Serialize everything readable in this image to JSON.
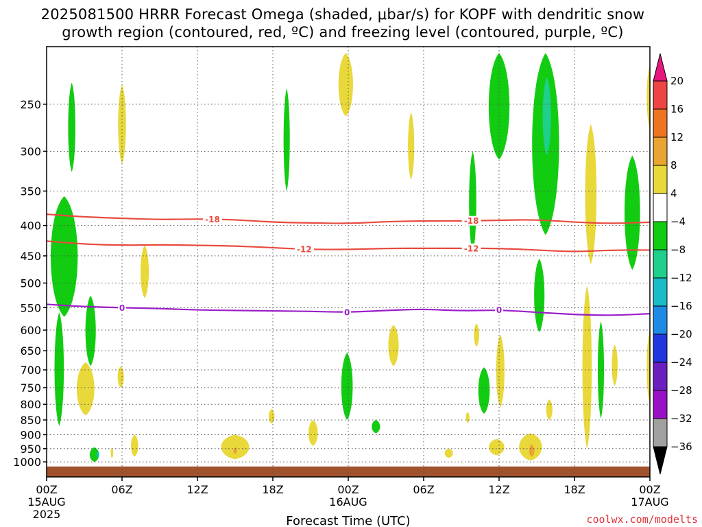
{
  "title": {
    "line1": "2025081500 HRRR Forecast Omega (shaded, μbar/s) for KOPF with dendritic snow",
    "line2": "growth region (contoured, red, ºC) and freezing level (contoured, purple, ºC)"
  },
  "credit": "coolwx.com/modelts",
  "colors": {
    "temp_contour": "#e84a3e",
    "freezing_contour": "#9a1fc8",
    "ground": "#a0522d",
    "grid": "#555555"
  },
  "chart_data": {
    "type": "heatmap",
    "xlabel": "Forecast Time (UTC)",
    "ylabel": "",
    "xlim_hours": [
      0,
      48
    ],
    "y_scale": "log",
    "ylim": [
      1060,
      200
    ],
    "grid": true,
    "x_ticks": [
      {
        "hour": 0,
        "label": "00Z",
        "sub1": "15AUG",
        "sub2": "2025"
      },
      {
        "hour": 6,
        "label": "06Z",
        "sub1": "",
        "sub2": ""
      },
      {
        "hour": 12,
        "label": "12Z",
        "sub1": "",
        "sub2": ""
      },
      {
        "hour": 18,
        "label": "18Z",
        "sub1": "",
        "sub2": ""
      },
      {
        "hour": 24,
        "label": "00Z",
        "sub1": "16AUG",
        "sub2": ""
      },
      {
        "hour": 30,
        "label": "06Z",
        "sub1": "",
        "sub2": ""
      },
      {
        "hour": 36,
        "label": "12Z",
        "sub1": "",
        "sub2": ""
      },
      {
        "hour": 42,
        "label": "18Z",
        "sub1": "",
        "sub2": ""
      },
      {
        "hour": 48,
        "label": "00Z",
        "sub1": "17AUG",
        "sub2": ""
      }
    ],
    "y_ticks": [
      250,
      300,
      350,
      400,
      450,
      500,
      550,
      600,
      650,
      700,
      750,
      800,
      850,
      900,
      950,
      1000
    ],
    "colorbar": {
      "labels": [
        "20",
        "16",
        "12",
        "8",
        "4",
        "−4",
        "−8",
        "−12",
        "−16",
        "−20",
        "−24",
        "−28",
        "−32",
        "−36"
      ],
      "bands_top_to_bottom": [
        "#e8177e",
        "#ef4444",
        "#ee7422",
        "#e9a431",
        "#e8d83a",
        "#ffffff",
        "#11cc11",
        "#1fcf8c",
        "#19bcc6",
        "#1f8ae6",
        "#2036de",
        "#6a1fbe",
        "#9a10c6",
        "#a0a0a0",
        "#000000"
      ]
    },
    "contours": [
      {
        "name": "-18",
        "color": "#e84a3e",
        "labels": [
          "-18",
          "-18"
        ],
        "label_hours": [
          13.2,
          33.8
        ],
        "points": [
          [
            0,
            383
          ],
          [
            3,
            387
          ],
          [
            6,
            389
          ],
          [
            9,
            391
          ],
          [
            12,
            390
          ],
          [
            15,
            391
          ],
          [
            18,
            395
          ],
          [
            21,
            396
          ],
          [
            24,
            397
          ],
          [
            27,
            394
          ],
          [
            30,
            393
          ],
          [
            33,
            393
          ],
          [
            36,
            392
          ],
          [
            39,
            391
          ],
          [
            42,
            395
          ],
          [
            45,
            397
          ],
          [
            48,
            395
          ]
        ]
      },
      {
        "name": "-12",
        "color": "#e84a3e",
        "labels": [
          "-12",
          "-12"
        ],
        "label_hours": [
          20.5,
          33.8
        ],
        "points": [
          [
            0,
            425
          ],
          [
            3,
            430
          ],
          [
            6,
            432
          ],
          [
            9,
            431
          ],
          [
            12,
            432
          ],
          [
            15,
            433
          ],
          [
            18,
            436
          ],
          [
            21,
            439
          ],
          [
            24,
            439
          ],
          [
            27,
            437
          ],
          [
            30,
            437
          ],
          [
            33,
            437
          ],
          [
            36,
            437
          ],
          [
            39,
            440
          ],
          [
            42,
            443
          ],
          [
            45,
            440
          ],
          [
            48,
            440
          ]
        ]
      },
      {
        "name": "0",
        "color": "#9a1fc8",
        "labels": [
          "0",
          "0",
          "0"
        ],
        "label_hours": [
          6.0,
          23.9,
          36.0
        ],
        "points": [
          [
            0,
            543
          ],
          [
            3,
            548
          ],
          [
            6,
            550
          ],
          [
            9,
            552
          ],
          [
            12,
            555
          ],
          [
            15,
            556
          ],
          [
            18,
            557
          ],
          [
            21,
            558
          ],
          [
            24,
            560
          ],
          [
            27,
            556
          ],
          [
            30,
            553
          ],
          [
            33,
            557
          ],
          [
            36,
            555
          ],
          [
            39,
            560
          ],
          [
            42,
            565
          ],
          [
            45,
            567
          ],
          [
            48,
            563
          ]
        ]
      }
    ],
    "omega_regions": [
      {
        "value": -6,
        "hour": 2.0,
        "p_top": 230,
        "p_bot": 325,
        "hw": 0.35
      },
      {
        "value": 5,
        "hour": 6.0,
        "p_top": 232,
        "p_bot": 315,
        "hw": 0.38
      },
      {
        "value": -6,
        "hour": 19.1,
        "p_top": 235,
        "p_bot": 350,
        "hw": 0.3
      },
      {
        "value": 5,
        "hour": 23.8,
        "p_top": 205,
        "p_bot": 262,
        "hw": 0.7
      },
      {
        "value": 5,
        "hour": 29.0,
        "p_top": 258,
        "p_bot": 335,
        "hw": 0.3
      },
      {
        "value": -6,
        "hour": 33.9,
        "p_top": 300,
        "p_bot": 445,
        "hw": 0.35
      },
      {
        "value": -6,
        "hour": 36.0,
        "p_top": 205,
        "p_bot": 310,
        "hw": 1.0
      },
      {
        "value": -6,
        "hour": 39.7,
        "p_top": 205,
        "p_bot": 415,
        "hw": 1.3
      },
      {
        "value": -10,
        "hour": 39.8,
        "p_top": 225,
        "p_bot": 305,
        "hw": 0.4
      },
      {
        "value": 5,
        "hour": 43.3,
        "p_top": 270,
        "p_bot": 465,
        "hw": 0.55
      },
      {
        "value": -6,
        "hour": 46.6,
        "p_top": 305,
        "p_bot": 475,
        "hw": 0.75
      },
      {
        "value": 5,
        "hour": 48.0,
        "p_top": 215,
        "p_bot": 275,
        "hw": 0.3
      },
      {
        "value": -6,
        "hour": 1.4,
        "p_top": 357,
        "p_bot": 570,
        "hw": 1.3
      },
      {
        "value": -6,
        "hour": 3.5,
        "p_top": 525,
        "p_bot": 690,
        "hw": 0.5
      },
      {
        "value": -6,
        "hour": 1.0,
        "p_top": 560,
        "p_bot": 870,
        "hw": 0.45
      },
      {
        "value": 5,
        "hour": 7.8,
        "p_top": 432,
        "p_bot": 530,
        "hw": 0.4
      },
      {
        "value": 5,
        "hour": 3.1,
        "p_top": 680,
        "p_bot": 835,
        "hw": 0.85
      },
      {
        "value": 5,
        "hour": 5.9,
        "p_top": 690,
        "p_bot": 750,
        "hw": 0.3
      },
      {
        "value": -6,
        "hour": 23.9,
        "p_top": 655,
        "p_bot": 850,
        "hw": 0.55
      },
      {
        "value": 5,
        "hour": 27.6,
        "p_top": 588,
        "p_bot": 690,
        "hw": 0.5
      },
      {
        "value": 5,
        "hour": 34.2,
        "p_top": 585,
        "p_bot": 640,
        "hw": 0.25
      },
      {
        "value": -6,
        "hour": 34.8,
        "p_top": 693,
        "p_bot": 830,
        "hw": 0.55
      },
      {
        "value": 5,
        "hour": 36.1,
        "p_top": 610,
        "p_bot": 810,
        "hw": 0.4
      },
      {
        "value": -6,
        "hour": 39.2,
        "p_top": 455,
        "p_bot": 605,
        "hw": 0.5
      },
      {
        "value": 5,
        "hour": 40.0,
        "p_top": 785,
        "p_bot": 850,
        "hw": 0.3
      },
      {
        "value": 5,
        "hour": 43.0,
        "p_top": 505,
        "p_bot": 950,
        "hw": 0.45
      },
      {
        "value": -6,
        "hour": 44.1,
        "p_top": 580,
        "p_bot": 845,
        "hw": 0.3
      },
      {
        "value": 5,
        "hour": 45.2,
        "p_top": 635,
        "p_bot": 745,
        "hw": 0.28
      },
      {
        "value": 5,
        "hour": 48.0,
        "p_top": 600,
        "p_bot": 800,
        "hw": 0.3
      },
      {
        "value": 5,
        "hour": 17.9,
        "p_top": 815,
        "p_bot": 862,
        "hw": 0.28
      },
      {
        "value": 5,
        "hour": 21.2,
        "p_top": 850,
        "p_bot": 940,
        "hw": 0.45
      },
      {
        "value": -6,
        "hour": 26.2,
        "p_top": 850,
        "p_bot": 895,
        "hw": 0.4
      },
      {
        "value": 5,
        "hour": 33.5,
        "p_top": 825,
        "p_bot": 860,
        "hw": 0.18
      },
      {
        "value": 5,
        "hour": 15.0,
        "p_top": 900,
        "p_bot": 990,
        "hw": 1.35
      },
      {
        "value": 10,
        "hour": 15.0,
        "p_top": 945,
        "p_bot": 970,
        "hw": 0.18
      },
      {
        "value": 5,
        "hour": 32.0,
        "p_top": 950,
        "p_bot": 985,
        "hw": 0.4
      },
      {
        "value": 5,
        "hour": 35.8,
        "p_top": 915,
        "p_bot": 975,
        "hw": 0.75
      },
      {
        "value": 5,
        "hour": 38.5,
        "p_top": 895,
        "p_bot": 995,
        "hw": 1.1
      },
      {
        "value": 10,
        "hour": 38.6,
        "p_top": 935,
        "p_bot": 980,
        "hw": 0.25
      },
      {
        "value": -6,
        "hour": 3.8,
        "p_top": 945,
        "p_bot": 1000,
        "hw": 0.45
      },
      {
        "value": -14,
        "hour": 4.1,
        "p_top": 960,
        "p_bot": 985,
        "hw": 0.12
      },
      {
        "value": 5,
        "hour": 5.2,
        "p_top": 945,
        "p_bot": 985,
        "hw": 0.12
      },
      {
        "value": 5,
        "hour": 7.0,
        "p_top": 900,
        "p_bot": 980,
        "hw": 0.35
      }
    ]
  }
}
